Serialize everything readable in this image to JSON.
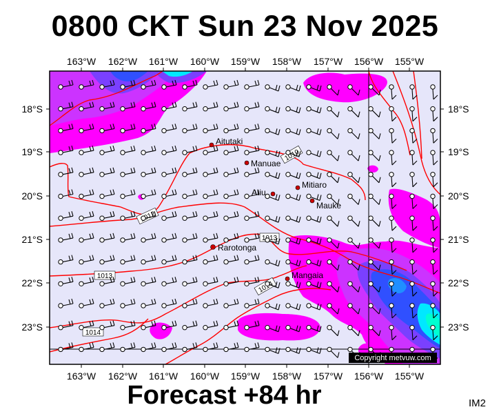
{
  "title": "0800 CKT Sun 23 Nov 2025",
  "forecast_label": "Forecast +84 hr",
  "corner_code": "IM2",
  "copyright": "Copyright metvuw.com",
  "colors": {
    "background": "#e6e6fa",
    "rain_magenta": "#ff00ff",
    "rain_purple": "#a040ff",
    "rain_blue": "#3050ff",
    "rain_cyan": "#00e8ff",
    "isobar": "#ff0000",
    "place_dot": "#cc0000"
  },
  "map": {
    "longitude_labels": [
      "163°W",
      "162°W",
      "161°W",
      "160°W",
      "159°W",
      "158°W",
      "157°W",
      "156°W",
      "155°W"
    ],
    "latitude_labels": [
      "18°S",
      "19°S",
      "20°S",
      "21°S",
      "22°S",
      "23°S"
    ],
    "places": [
      {
        "name": "Aitutaki",
        "lon": -159.79,
        "lat": -18.86
      },
      {
        "name": "Manuae",
        "lon": -158.95,
        "lat": -19.25
      },
      {
        "name": "Mitiaro",
        "lon": -157.72,
        "lat": -19.86
      },
      {
        "name": "Atiu",
        "lon": -158.12,
        "lat": -20.0
      },
      {
        "name": "Mauke",
        "lon": -157.35,
        "lat": -20.15
      },
      {
        "name": "Rarotonga",
        "lon": -159.78,
        "lat": -21.23
      },
      {
        "name": "Mangaia",
        "lon": -157.93,
        "lat": -21.91
      }
    ],
    "isobar_labels": [
      "1010",
      "1012",
      "1013",
      "1013",
      "1014",
      "1014"
    ],
    "wind_barb_grid": "wind barbs with station circles at each grid point"
  }
}
